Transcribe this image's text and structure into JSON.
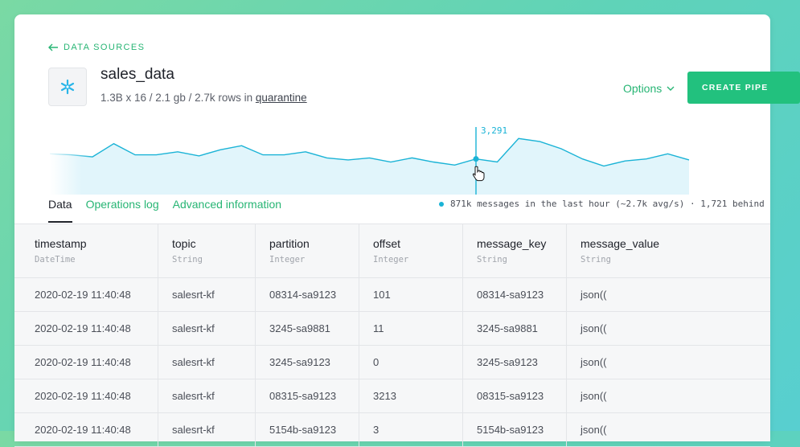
{
  "header": {
    "back_label": "DATA SOURCES",
    "title": "sales_data",
    "subtitle_prefix": "1.3B x 16 / 2.1 gb / 2.7k rows in ",
    "subtitle_link": "quarantine",
    "options_label": "Options",
    "create_label": "CREATE PIPE"
  },
  "chart_data": {
    "type": "area",
    "tooltip_value": "3,291",
    "values": [
      40,
      39,
      37,
      50,
      39,
      39,
      42,
      38,
      44,
      48,
      39,
      39,
      42,
      36,
      34,
      36,
      32,
      36,
      32,
      29,
      35,
      32,
      55,
      52,
      45,
      35,
      28,
      33,
      35,
      40,
      34
    ],
    "highlight_index": 20,
    "color": "#1ab3d6"
  },
  "tabs": [
    {
      "label": "Data",
      "active": true
    },
    {
      "label": "Operations log",
      "active": false
    },
    {
      "label": "Advanced information",
      "active": false
    }
  ],
  "status_text": "871k messages in the last hour (~2.7k avg/s) · 1,721 behind",
  "table": {
    "columns": [
      {
        "name": "timestamp",
        "type": "DateTime"
      },
      {
        "name": "topic",
        "type": "String"
      },
      {
        "name": "partition",
        "type": "Integer"
      },
      {
        "name": "offset",
        "type": "Integer"
      },
      {
        "name": "message_key",
        "type": "String"
      },
      {
        "name": "message_value",
        "type": "String"
      }
    ],
    "rows": [
      [
        "2020-02-19 11:40:48",
        "salesrt-kf",
        "08314-sa9123",
        "101",
        "08314-sa9123",
        "json(("
      ],
      [
        "2020-02-19 11:40:48",
        "salesrt-kf",
        "3245-sa9881",
        "11",
        "3245-sa9881",
        "json(("
      ],
      [
        "2020-02-19 11:40:48",
        "salesrt-kf",
        "3245-sa9123",
        "0",
        "3245-sa9123",
        "json(("
      ],
      [
        "2020-02-19 11:40:48",
        "salesrt-kf",
        "08315-sa9123",
        "3213",
        "08315-sa9123",
        "json(("
      ],
      [
        "2020-02-19 11:40:48",
        "salesrt-kf",
        "5154b-sa9123",
        "3",
        "5154b-sa9123",
        "json(("
      ]
    ]
  },
  "colors": {
    "accent": "#27b574",
    "chart": "#1ab3d6",
    "snowflake": "#29b5e8"
  }
}
